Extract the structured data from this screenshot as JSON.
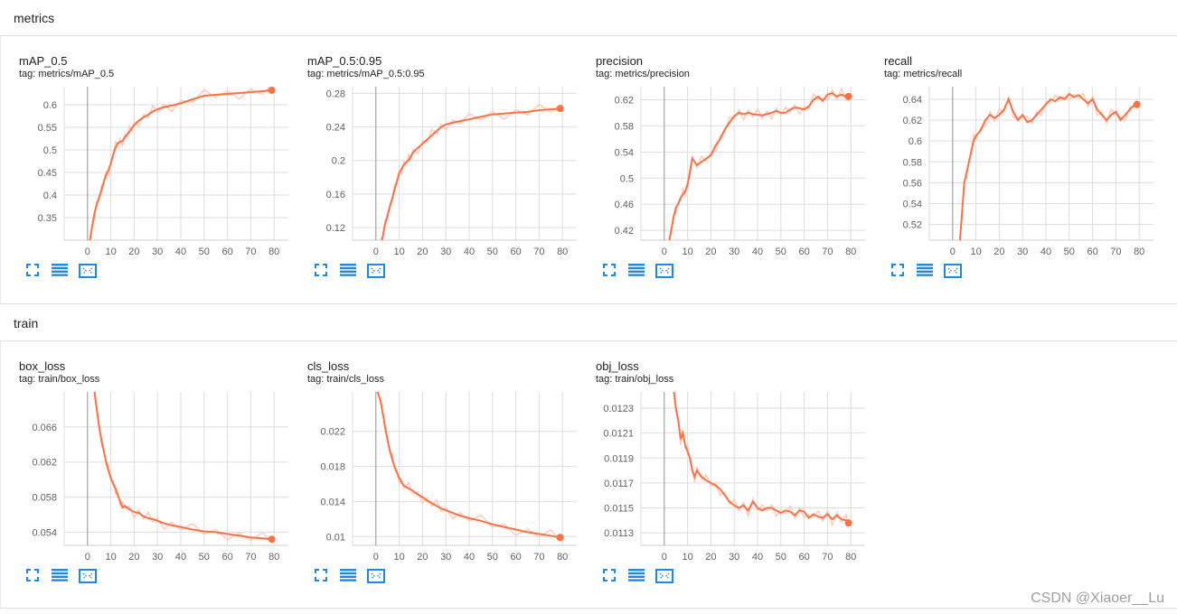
{
  "groups": [
    {
      "title": "metrics",
      "cards": [
        {
          "name": "mAP_0.5",
          "tag": "tag: metrics/mAP_0.5",
          "chart_data": {
            "type": "line",
            "x": [
              0,
              1,
              2,
              3,
              4,
              5,
              6,
              7,
              8,
              9,
              10,
              11,
              12,
              13,
              14,
              15,
              16,
              17,
              18,
              19,
              20,
              22,
              24,
              26,
              28,
              30,
              33,
              36,
              40,
              45,
              50,
              55,
              60,
              65,
              70,
              75,
              79
            ],
            "values": [
              0.27,
              0.3,
              0.33,
              0.36,
              0.38,
              0.395,
              0.41,
              0.43,
              0.445,
              0.455,
              0.47,
              0.49,
              0.505,
              0.515,
              0.518,
              0.52,
              0.528,
              0.535,
              0.54,
              0.548,
              0.555,
              0.565,
              0.572,
              0.578,
              0.585,
              0.59,
              0.595,
              0.598,
              0.603,
              0.612,
              0.62,
              0.622,
              0.624,
              0.626,
              0.628,
              0.63,
              0.632
            ],
            "ylim": [
              0.3,
              0.64
            ],
            "yticks": [
              "0.35",
              "0.4",
              "0.45",
              "0.5",
              "0.55",
              "0.6"
            ],
            "xticks": [
              "0",
              "10",
              "20",
              "30",
              "40",
              "50",
              "60",
              "70",
              "80"
            ],
            "xlim": [
              -10,
              90
            ]
          }
        },
        {
          "name": "mAP_0.5:0.95",
          "tag": "tag: metrics/mAP_0.5:0.95",
          "chart_data": {
            "type": "line",
            "x": [
              2,
              3,
              4,
              5,
              6,
              7,
              8,
              9,
              10,
              11,
              12,
              13,
              14,
              15,
              16,
              18,
              20,
              22,
              24,
              26,
              28,
              30,
              33,
              36,
              40,
              45,
              50,
              55,
              60,
              65,
              70,
              75,
              79
            ],
            "values": [
              0.1,
              0.11,
              0.125,
              0.135,
              0.145,
              0.155,
              0.165,
              0.175,
              0.185,
              0.19,
              0.195,
              0.198,
              0.2,
              0.205,
              0.21,
              0.215,
              0.22,
              0.225,
              0.23,
              0.235,
              0.24,
              0.243,
              0.245,
              0.247,
              0.249,
              0.252,
              0.255,
              0.256,
              0.257,
              0.258,
              0.26,
              0.261,
              0.262
            ],
            "ylim": [
              0.105,
              0.288
            ],
            "yticks": [
              "0.12",
              "0.16",
              "0.2",
              "0.24",
              "0.28"
            ],
            "xticks": [
              "0",
              "10",
              "20",
              "30",
              "40",
              "50",
              "60",
              "70",
              "80"
            ],
            "xlim": [
              -10,
              90
            ]
          }
        },
        {
          "name": "precision",
          "tag": "tag: metrics/precision",
          "chart_data": {
            "type": "line",
            "x": [
              2,
              3,
              4,
              5,
              6,
              7,
              8,
              9,
              10,
              11,
              12,
              14,
              16,
              18,
              20,
              22,
              24,
              26,
              28,
              30,
              32,
              34,
              36,
              38,
              40,
              42,
              44,
              46,
              48,
              50,
              52,
              54,
              56,
              58,
              60,
              62,
              64,
              66,
              68,
              70,
              72,
              74,
              76,
              78,
              79
            ],
            "values": [
              0.4,
              0.42,
              0.44,
              0.455,
              0.46,
              0.47,
              0.475,
              0.48,
              0.49,
              0.51,
              0.53,
              0.52,
              0.525,
              0.53,
              0.535,
              0.55,
              0.56,
              0.575,
              0.585,
              0.595,
              0.6,
              0.598,
              0.6,
              0.598,
              0.597,
              0.596,
              0.598,
              0.6,
              0.603,
              0.6,
              0.6,
              0.605,
              0.608,
              0.607,
              0.605,
              0.61,
              0.62,
              0.625,
              0.618,
              0.628,
              0.63,
              0.625,
              0.628,
              0.624,
              0.625
            ],
            "ylim": [
              0.405,
              0.64
            ],
            "yticks": [
              "0.42",
              "0.46",
              "0.5",
              "0.54",
              "0.58",
              "0.62"
            ],
            "xticks": [
              "0",
              "10",
              "20",
              "30",
              "40",
              "50",
              "60",
              "70",
              "80"
            ],
            "xlim": [
              -10,
              90
            ]
          }
        },
        {
          "name": "recall",
          "tag": "tag: metrics/recall",
          "chart_data": {
            "type": "line",
            "x": [
              3,
              4,
              5,
              6,
              7,
              8,
              9,
              10,
              12,
              14,
              16,
              18,
              20,
              22,
              24,
              26,
              28,
              30,
              32,
              34,
              36,
              38,
              40,
              42,
              44,
              46,
              48,
              50,
              52,
              54,
              56,
              58,
              60,
              62,
              64,
              66,
              68,
              70,
              72,
              74,
              76,
              78,
              79
            ],
            "values": [
              0.5,
              0.53,
              0.56,
              0.57,
              0.58,
              0.59,
              0.6,
              0.605,
              0.61,
              0.62,
              0.625,
              0.622,
              0.625,
              0.63,
              0.64,
              0.628,
              0.62,
              0.625,
              0.618,
              0.62,
              0.625,
              0.63,
              0.635,
              0.64,
              0.638,
              0.642,
              0.64,
              0.645,
              0.642,
              0.644,
              0.64,
              0.636,
              0.64,
              0.63,
              0.625,
              0.62,
              0.625,
              0.628,
              0.62,
              0.625,
              0.63,
              0.635,
              0.635
            ],
            "ylim": [
              0.505,
              0.652
            ],
            "yticks": [
              "0.52",
              "0.54",
              "0.56",
              "0.58",
              "0.6",
              "0.62",
              "0.64"
            ],
            "xticks": [
              "0",
              "10",
              "20",
              "30",
              "40",
              "50",
              "60",
              "70",
              "80"
            ],
            "xlim": [
              -10,
              90
            ]
          }
        }
      ]
    },
    {
      "title": "train",
      "cards": [
        {
          "name": "box_loss",
          "tag": "tag: train/box_loss",
          "chart_data": {
            "type": "line",
            "x": [
              3,
              4,
              5,
              6,
              7,
              8,
              9,
              10,
              11,
              12,
              13,
              14,
              15,
              16,
              18,
              20,
              22,
              24,
              26,
              28,
              30,
              33,
              36,
              40,
              45,
              50,
              55,
              60,
              65,
              70,
              75,
              79
            ],
            "values": [
              0.07,
              0.068,
              0.066,
              0.0645,
              0.0632,
              0.062,
              0.061,
              0.0602,
              0.0595,
              0.059,
              0.0582,
              0.0575,
              0.0568,
              0.057,
              0.0566,
              0.0563,
              0.0562,
              0.0558,
              0.0556,
              0.0555,
              0.0553,
              0.055,
              0.0548,
              0.0546,
              0.0543,
              0.0541,
              0.054,
              0.0538,
              0.0536,
              0.0534,
              0.0533,
              0.0532
            ],
            "ylim": [
              0.0525,
              0.07
            ],
            "yticks": [
              "0.054",
              "0.058",
              "0.062",
              "0.066"
            ],
            "xticks": [
              "0",
              "10",
              "20",
              "30",
              "40",
              "50",
              "60",
              "70",
              "80"
            ],
            "xlim": [
              -10,
              90
            ]
          }
        },
        {
          "name": "cls_loss",
          "tag": "tag: train/cls_loss",
          "chart_data": {
            "type": "line",
            "x": [
              0,
              2,
              3,
              4,
              5,
              6,
              7,
              8,
              9,
              10,
              11,
              12,
              14,
              16,
              18,
              20,
              22,
              24,
              26,
              28,
              30,
              33,
              36,
              40,
              45,
              50,
              55,
              60,
              65,
              70,
              75,
              79
            ],
            "values": [
              0.027,
              0.0255,
              0.024,
              0.0225,
              0.021,
              0.0198,
              0.0188,
              0.018,
              0.0173,
              0.0167,
              0.0162,
              0.0158,
              0.0155,
              0.0152,
              0.0148,
              0.0145,
              0.0141,
              0.0138,
              0.0135,
              0.0132,
              0.013,
              0.0127,
              0.0124,
              0.0121,
              0.0118,
              0.0114,
              0.0111,
              0.0108,
              0.0105,
              0.0103,
              0.0101,
              0.0099
            ],
            "ylim": [
              0.009,
              0.0265
            ],
            "yticks": [
              "0.01",
              "0.014",
              "0.018",
              "0.022"
            ],
            "xticks": [
              "0",
              "10",
              "20",
              "30",
              "40",
              "50",
              "60",
              "70",
              "80"
            ],
            "xlim": [
              -10,
              90
            ]
          }
        },
        {
          "name": "obj_loss",
          "tag": "tag: train/obj_loss",
          "chart_data": {
            "type": "line",
            "x": [
              4,
              5,
              6,
              7,
              8,
              9,
              10,
              11,
              12,
              13,
              14,
              16,
              18,
              20,
              22,
              24,
              26,
              28,
              30,
              32,
              34,
              36,
              38,
              40,
              42,
              44,
              46,
              48,
              50,
              52,
              54,
              56,
              58,
              60,
              62,
              64,
              66,
              68,
              70,
              72,
              74,
              76,
              78,
              79
            ],
            "values": [
              0.01245,
              0.0123,
              0.0122,
              0.01205,
              0.0121,
              0.012,
              0.01195,
              0.0119,
              0.0118,
              0.01175,
              0.0118,
              0.01175,
              0.01172,
              0.0117,
              0.01168,
              0.01165,
              0.0116,
              0.01155,
              0.01152,
              0.0115,
              0.01152,
              0.01148,
              0.01155,
              0.0115,
              0.01148,
              0.0115,
              0.0115,
              0.01148,
              0.01146,
              0.01148,
              0.01147,
              0.01144,
              0.01148,
              0.01147,
              0.01142,
              0.01145,
              0.01143,
              0.01142,
              0.01145,
              0.01141,
              0.01144,
              0.01141,
              0.0114,
              0.01138
            ],
            "ylim": [
              0.0112,
              0.01243
            ],
            "yticks": [
              "0.0113",
              "0.0115",
              "0.0117",
              "0.0119",
              "0.0121",
              "0.0123"
            ],
            "xticks": [
              "0",
              "10",
              "20",
              "30",
              "40",
              "50",
              "60",
              "70",
              "80"
            ],
            "xlim": [
              -10,
              90
            ]
          }
        }
      ]
    }
  ],
  "colors": {
    "line": "#ff7043",
    "smooth_raw": "#ffccbc",
    "grid": "#dddddd",
    "axis_zero": "#999999",
    "icon": "#1e88e5"
  },
  "watermark": "CSDN @Xiaoer__Lu"
}
